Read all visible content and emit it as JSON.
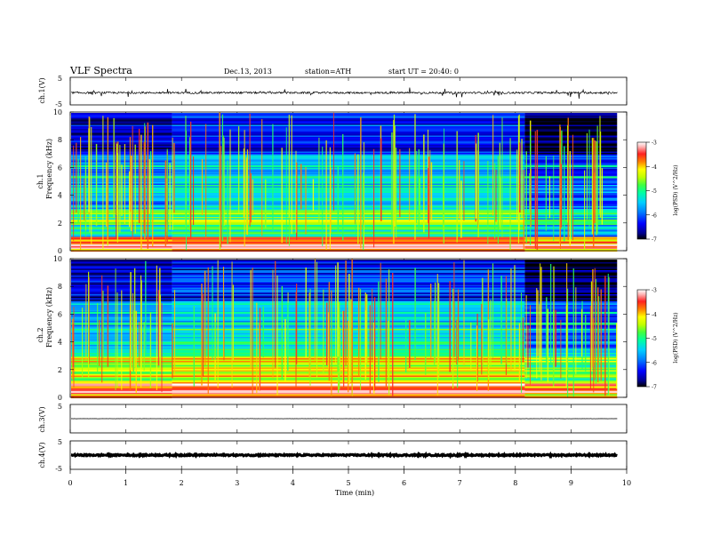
{
  "header": {
    "title": "VLF  Spectra",
    "date": "Dec.13, 2013",
    "station": "station=ATH",
    "start": "start  UT =   20:40: 0"
  },
  "chart_data": [
    {
      "type": "line",
      "panel": "ch1_waveform",
      "ylabel": "ch.1(V)",
      "ylim": [
        -5,
        5
      ],
      "y_ticks": [
        "5",
        "-5"
      ],
      "baseline_level": -0.6,
      "noise_amplitude": 0.35,
      "spike_count": 40
    },
    {
      "type": "heatmap",
      "panel": "ch1_spectrogram",
      "ylabel_top": "ch.1",
      "ylabel": "Frequency  (kHz)",
      "ylim": [
        0,
        10
      ],
      "y_ticks": [
        "10",
        "8",
        "6",
        "4",
        "2",
        "0"
      ],
      "colorbar": {
        "label": "log(PSD) (V^2/Hz)",
        "ticks": [
          "-3",
          "-4",
          "-5",
          "-6",
          "-7"
        ],
        "range": [
          -7,
          -3
        ]
      },
      "regime_changes_min": [
        1.83,
        8.17
      ]
    },
    {
      "type": "heatmap",
      "panel": "ch2_spectrogram",
      "ylabel_top": "ch.2",
      "ylabel": "Frequency  (kHz)",
      "ylim": [
        0,
        10
      ],
      "y_ticks": [
        "10",
        "8",
        "6",
        "4",
        "2",
        "0"
      ],
      "colorbar": {
        "label": "log(PSD) (V^2/Hz)",
        "ticks": [
          "-3",
          "-4",
          "-5",
          "-6",
          "-7"
        ],
        "range": [
          -7,
          -3
        ]
      },
      "regime_changes_min": [
        1.83,
        8.17
      ]
    },
    {
      "type": "line",
      "panel": "ch3_waveform",
      "ylabel": "ch.3(V)",
      "ylim": [
        -5,
        5
      ],
      "y_ticks": [
        "5"
      ],
      "baseline_level": 0.0
    },
    {
      "type": "line",
      "panel": "ch4_waveform",
      "ylabel": "ch.4(V)",
      "ylim": [
        -5,
        5
      ],
      "y_ticks": [
        "5",
        "-5"
      ],
      "baseline_level": 0.0
    }
  ],
  "x_axis": {
    "label": "Time  (min)",
    "ticks": [
      "0",
      "1",
      "2",
      "3",
      "4",
      "5",
      "6",
      "7",
      "8",
      "9",
      "10"
    ],
    "range": [
      0,
      10
    ],
    "data_end": 9.83
  },
  "colors": {
    "cmap": [
      "#000000",
      "#00008b",
      "#0000ff",
      "#0080ff",
      "#00d0ff",
      "#00ffa0",
      "#40ff40",
      "#c0ff00",
      "#ffff00",
      "#ff8000",
      "#ff2020",
      "#ffb0b0",
      "#ffffff"
    ]
  }
}
